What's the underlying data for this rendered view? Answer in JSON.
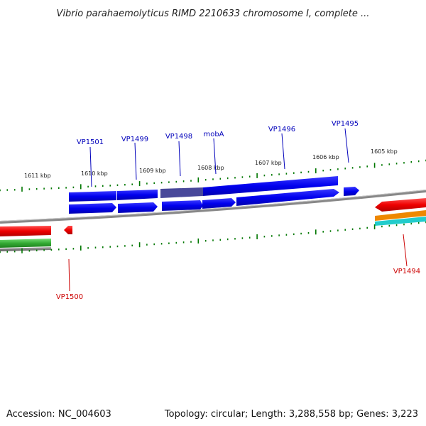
{
  "title": "Vibrio parahaemolyticus RIMD 2210633 chromosome I, complete ...",
  "footer": {
    "accession": "Accession: NC_004603",
    "summary": "Topology: circular; Length: 3,288,558 bp; Genes: 3,223"
  },
  "ticks": [
    "1611 kbp",
    "1610 kbp",
    "1609 kbp",
    "1608 kbp",
    "1607 kbp",
    "1606 kbp",
    "1605 kbp"
  ],
  "genes_forward": [
    "VP1501",
    "VP1499",
    "VP1498",
    "mobA",
    "VP1496",
    "VP1495"
  ],
  "genes_reverse": [
    "VP1500",
    "VP1494"
  ],
  "colors": {
    "forward_gene": "#0000ee",
    "forward_gene_shade": "#48489a",
    "reverse_gene": "#ee0000",
    "forward_label": "#0000bb",
    "reverse_label": "#cc0000",
    "tick": "#007700",
    "backbone": "#808080",
    "track_green": "#33aa33",
    "track_orange": "#ee8800",
    "track_cyan": "#22cccc"
  }
}
